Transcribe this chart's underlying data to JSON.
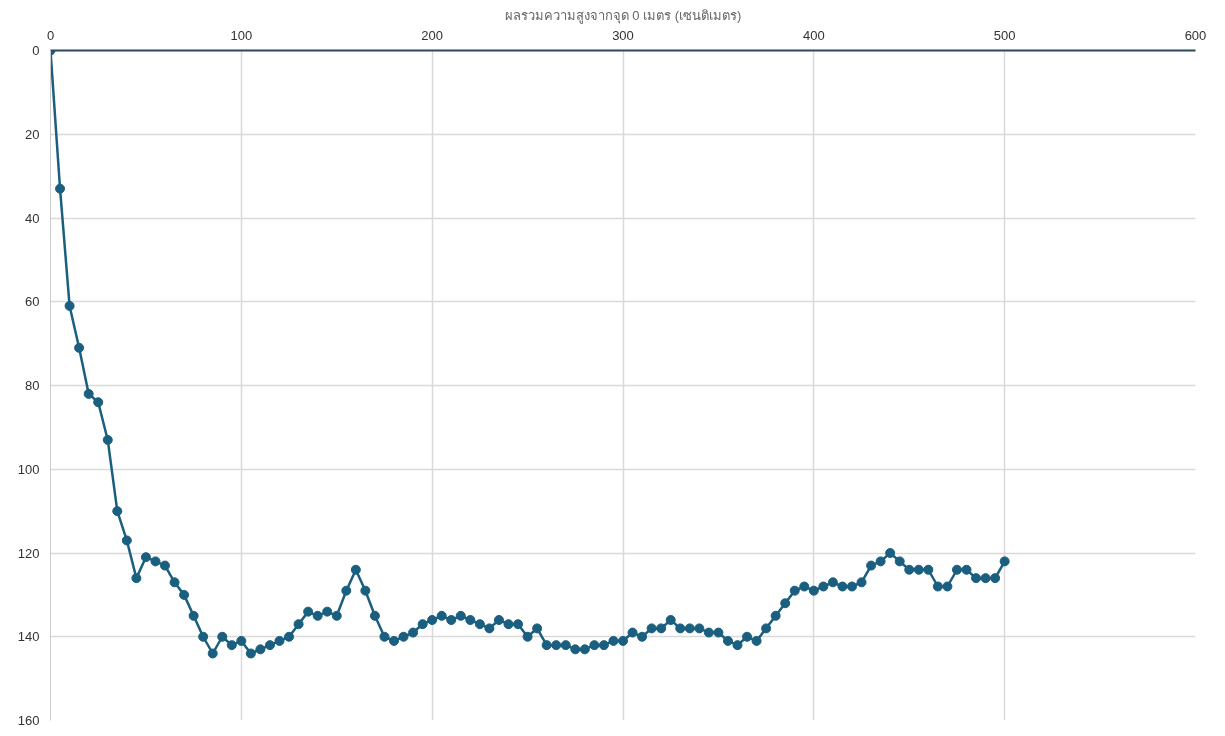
{
  "chart_data": {
    "type": "line",
    "title": "ผลรวมความสูงจากจุด 0 เมตร (เซนติเมตร)",
    "x": [
      0,
      5,
      10,
      15,
      20,
      25,
      30,
      35,
      40,
      45,
      50,
      55,
      60,
      65,
      70,
      75,
      80,
      85,
      90,
      95,
      100,
      105,
      110,
      115,
      120,
      125,
      130,
      135,
      140,
      145,
      150,
      155,
      160,
      165,
      170,
      175,
      180,
      185,
      190,
      195,
      200,
      205,
      210,
      215,
      220,
      225,
      230,
      235,
      240,
      245,
      250,
      255,
      260,
      265,
      270,
      275,
      280,
      285,
      290,
      295,
      300,
      305,
      310,
      315,
      320,
      325,
      330,
      335,
      340,
      345,
      350,
      355,
      360,
      365,
      370,
      375,
      380,
      385,
      390,
      395,
      400,
      405,
      410,
      415,
      420,
      425,
      430,
      435,
      440,
      445,
      450,
      455,
      460,
      465,
      470,
      475,
      480,
      485,
      490,
      495,
      500
    ],
    "series": [
      {
        "color": "#1a5f7f",
        "values": [
          0,
          33,
          61,
          71,
          82,
          84,
          93,
          110,
          117,
          126,
          121,
          122,
          123,
          127,
          130,
          135,
          140,
          144,
          140,
          142,
          141,
          144,
          143,
          142,
          141,
          140,
          137,
          134,
          135,
          134,
          135,
          129,
          124,
          129,
          135,
          140,
          141,
          140,
          139,
          137,
          136,
          135,
          136,
          135,
          136,
          137,
          138,
          136,
          137,
          137,
          140,
          138,
          142,
          142,
          142,
          143,
          143,
          142,
          142,
          141,
          141,
          139,
          140,
          138,
          138,
          136,
          138,
          138,
          138,
          139,
          139,
          141,
          142,
          140,
          141,
          138,
          135,
          132,
          129,
          128,
          129,
          128,
          127,
          128,
          128,
          127,
          123,
          122,
          120,
          122,
          124,
          124,
          124,
          128,
          128,
          124,
          124,
          126,
          126,
          126,
          122
        ]
      }
    ],
    "xlim": [
      0,
      600
    ],
    "xticks": [
      0,
      100,
      200,
      300,
      400,
      500,
      600
    ],
    "ylim": [
      160,
      0
    ],
    "yticks": [
      0,
      20,
      40,
      60,
      80,
      100,
      120,
      140,
      160
    ],
    "grid": true,
    "marker": "circle",
    "line_style": "solid"
  }
}
